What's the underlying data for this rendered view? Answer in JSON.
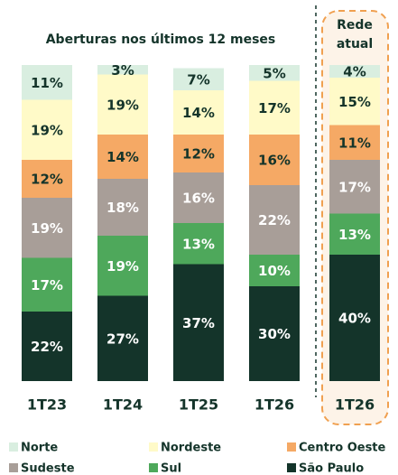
{
  "chart_data": {
    "type": "stacked_bar",
    "title": "Aberturas nos últimos 12 meses",
    "annotation": [
      "Rede",
      "atual"
    ],
    "categories": [
      "1T23",
      "1T24",
      "1T25",
      "1T26",
      "1T26"
    ],
    "ylim": [
      0,
      100
    ],
    "series": [
      {
        "name": "São Paulo",
        "color": "#14342a",
        "values": [
          22,
          27,
          37,
          30,
          40
        ],
        "value_labels": [
          "22%",
          "27%",
          "37%",
          "30%",
          "40%"
        ]
      },
      {
        "name": "Sul",
        "color": "#4ea85b",
        "values": [
          17,
          19,
          13,
          10,
          13
        ],
        "value_labels": [
          "17%",
          "19%",
          "13%",
          "10%",
          "13%"
        ]
      },
      {
        "name": "Sudeste",
        "color": "#a89e98",
        "values": [
          19,
          18,
          16,
          22,
          17
        ],
        "value_labels": [
          "19%",
          "18%",
          "16%",
          "22%",
          "17%"
        ]
      },
      {
        "name": "Centro Oeste",
        "color": "#f5a965",
        "values": [
          12,
          14,
          12,
          16,
          11
        ],
        "value_labels": [
          "12%",
          "14%",
          "12%",
          "16%",
          "11%"
        ]
      },
      {
        "name": "Nordeste",
        "color": "#fffac8",
        "values": [
          19,
          19,
          14,
          17,
          15
        ],
        "value_labels": [
          "19%",
          "19%",
          "14%",
          "17%",
          "15%"
        ]
      },
      {
        "name": "Norte",
        "color": "#d9eee0",
        "values": [
          11,
          3,
          7,
          5,
          4
        ],
        "value_labels": [
          "11%",
          "3%",
          "7%",
          "5%",
          "4%"
        ]
      }
    ]
  }
}
